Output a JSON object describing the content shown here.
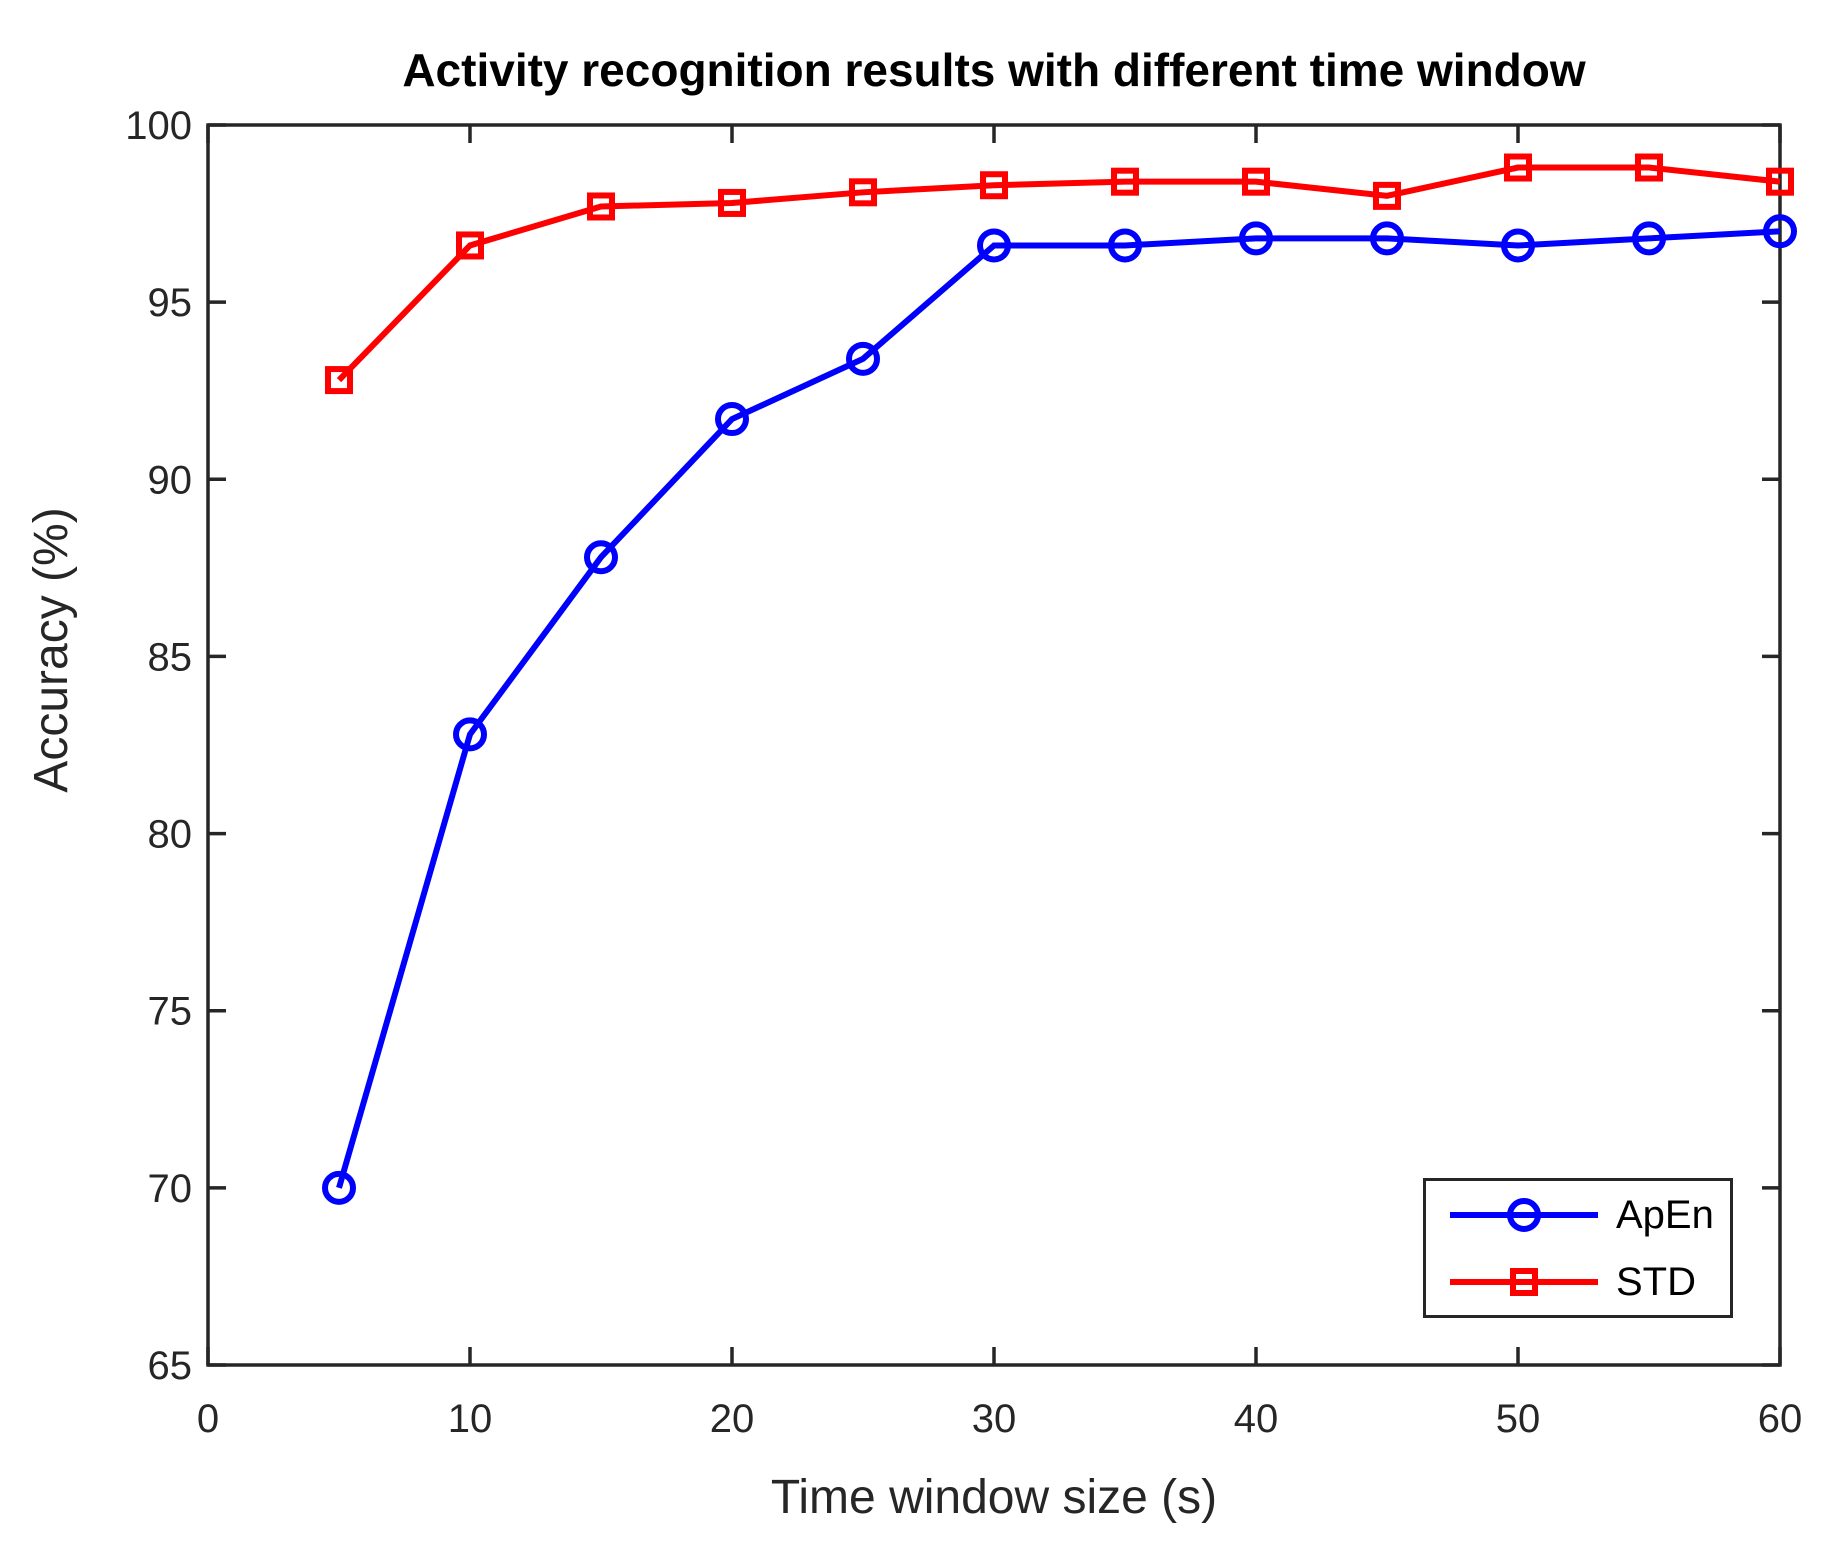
{
  "chart_data": {
    "type": "line",
    "title": "Activity recognition results with different time window",
    "xlabel": "Time window size (s)",
    "ylabel": "Accuracy (%)",
    "xlim": [
      0,
      60
    ],
    "ylim": [
      65,
      100
    ],
    "x_ticks": [
      0,
      10,
      20,
      30,
      40,
      50,
      60
    ],
    "y_ticks": [
      65,
      70,
      75,
      80,
      85,
      90,
      95,
      100
    ],
    "grid": false,
    "legend_position": "bottom-right",
    "axis_color": "#262626",
    "x": [
      5,
      10,
      15,
      20,
      25,
      30,
      35,
      40,
      45,
      50,
      55,
      60
    ],
    "series": [
      {
        "name": "ApEn",
        "color": "#0000ff",
        "marker": "circle",
        "values": [
          70.0,
          82.8,
          87.8,
          91.7,
          93.4,
          96.6,
          96.6,
          96.8,
          96.8,
          96.6,
          96.8,
          97.0
        ]
      },
      {
        "name": "STD",
        "color": "#ff0000",
        "marker": "square",
        "values": [
          92.8,
          96.6,
          97.7,
          97.8,
          98.1,
          98.3,
          98.4,
          98.4,
          98.0,
          98.8,
          98.8,
          98.4
        ]
      }
    ]
  }
}
